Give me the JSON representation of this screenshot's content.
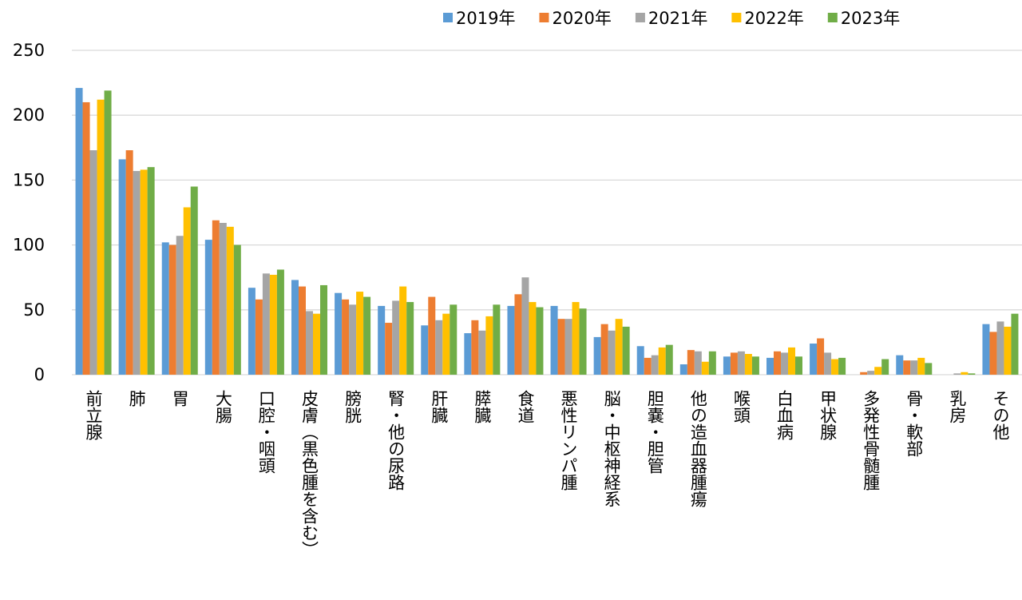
{
  "chart_data": {
    "type": "bar",
    "categories": [
      "前立腺",
      "肺",
      "胃",
      "大腸",
      "口腔・咽頭",
      "皮膚（黒色腫を含む）",
      "膀胱",
      "腎・他の尿路",
      "肝臓",
      "膵臓",
      "食道",
      "悪性リンパ腫",
      "脳・中枢神経系",
      "胆嚢・胆管",
      "他の造血器腫瘍",
      "喉頭",
      "白血病",
      "甲状腺",
      "多発性骨髄腫",
      "骨・軟部",
      "乳房",
      "その他"
    ],
    "series": [
      {
        "name": "2019年",
        "color": "#5b9bd5",
        "values": [
          221,
          166,
          102,
          104,
          67,
          73,
          63,
          53,
          38,
          32,
          53,
          53,
          29,
          22,
          8,
          14,
          13,
          24,
          0,
          15,
          0,
          39
        ]
      },
      {
        "name": "2020年",
        "color": "#ed7d31",
        "values": [
          210,
          173,
          100,
          119,
          58,
          68,
          58,
          40,
          60,
          42,
          62,
          43,
          39,
          13,
          19,
          17,
          18,
          28,
          2,
          11,
          0,
          33
        ]
      },
      {
        "name": "2021年",
        "color": "#a5a5a5",
        "values": [
          173,
          157,
          107,
          117,
          78,
          49,
          54,
          57,
          42,
          34,
          75,
          43,
          34,
          15,
          18,
          18,
          17,
          17,
          3,
          11,
          1,
          41
        ]
      },
      {
        "name": "2022年",
        "color": "#ffc000",
        "values": [
          212,
          158,
          129,
          114,
          77,
          47,
          64,
          68,
          47,
          45,
          56,
          56,
          43,
          21,
          10,
          16,
          21,
          12,
          6,
          13,
          2,
          37
        ]
      },
      {
        "name": "2023年",
        "color": "#70ad47",
        "values": [
          219,
          160,
          145,
          100,
          81,
          69,
          60,
          56,
          54,
          54,
          52,
          51,
          37,
          23,
          18,
          14,
          14,
          13,
          12,
          9,
          1,
          47
        ]
      }
    ],
    "ylim": [
      0,
      250
    ],
    "yticks": [
      0,
      50,
      100,
      150,
      200,
      250
    ],
    "grid": true,
    "legend": "top-right"
  }
}
